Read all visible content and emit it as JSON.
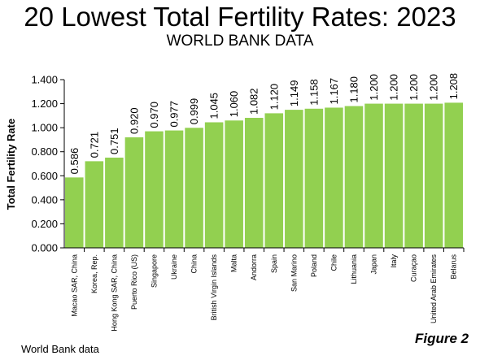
{
  "header": {
    "title": "20 Lowest Total Fertility Rates: 2023",
    "subtitle": "WORLD BANK DATA"
  },
  "footer": {
    "source": "World Bank data",
    "figure_label": "Figure 2"
  },
  "colors": {
    "bar": "#92d050",
    "axis": "#000000",
    "background": "#ffffff"
  },
  "chart_data": {
    "type": "bar",
    "title": "20 Lowest Total Fertility Rates: 2023",
    "subtitle": "WORLD BANK DATA",
    "xlabel": "",
    "ylabel": "Total Fertility Rate",
    "ylim": [
      0,
      1.4
    ],
    "yticks": [
      "0.000",
      "0.200",
      "0.400",
      "0.600",
      "0.800",
      "1.000",
      "1.200",
      "1.400"
    ],
    "grid": false,
    "legend": "none",
    "categories": [
      "Macao SAR, China",
      "Korea, Rep.",
      "Hong Kong SAR, China",
      "Puerto Rico (US)",
      "Singapore",
      "Ukraine",
      "China",
      "British Virgin Islands",
      "Malta",
      "Andorra",
      "Spain",
      "San Marino",
      "Poland",
      "Chile",
      "Lithuania",
      "Japan",
      "Italy",
      "Curaçao",
      "United Arab Emirates",
      "Belarus"
    ],
    "values": [
      0.586,
      0.721,
      0.751,
      0.92,
      0.97,
      0.977,
      0.999,
      1.045,
      1.06,
      1.082,
      1.12,
      1.149,
      1.158,
      1.167,
      1.18,
      1.2,
      1.2,
      1.2,
      1.2,
      1.208
    ],
    "data_labels": [
      "0.586",
      "0.721",
      "0.751",
      "0.920",
      "0.970",
      "0.977",
      "0.999",
      "1.045",
      "1.060",
      "1.082",
      "1.120",
      "1.149",
      "1.158",
      "1.167",
      "1.180",
      "1.200",
      "1.200",
      "1.200",
      "1.200",
      "1.208"
    ]
  }
}
